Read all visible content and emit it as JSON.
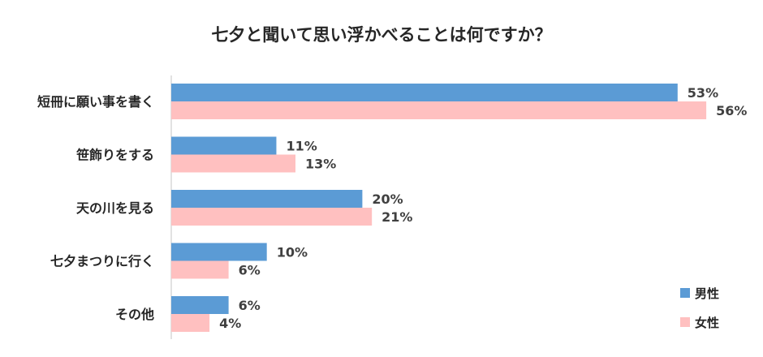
{
  "chart_data": {
    "type": "bar",
    "orientation": "horizontal",
    "title": "七夕と聞いて思い浮かべることは何ですか？",
    "categories": [
      "短冊に願い事を書く",
      "笹飾りをする",
      "天の川を見る",
      "七夕まつりに行く",
      "その他"
    ],
    "series": [
      {
        "name": "男性",
        "color": "#5B9BD5",
        "values": [
          53,
          11,
          20,
          10,
          6
        ]
      },
      {
        "name": "女性",
        "color": "#FFC0C0",
        "values": [
          56,
          13,
          21,
          6,
          4
        ]
      }
    ],
    "value_suffix": "%",
    "xlim": [
      0,
      60
    ],
    "grid": false,
    "legend_position": "bottom-right"
  }
}
